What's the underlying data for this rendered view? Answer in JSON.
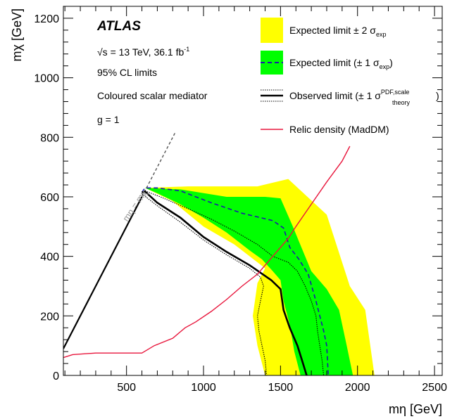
{
  "chart_data": {
    "type": "area",
    "experiment": "ATLAS",
    "energy_prefix": "√s = 13 TeV, 36.1 fb",
    "energy_sup": "-1",
    "cl_text": "95% CL limits",
    "model_text": "Coloured scalar mediator",
    "coupling_text": "g = 1",
    "diagonal_label": "mη = mχ",
    "xlabel": "mη [GeV]",
    "ylabel": "mχ [GeV]",
    "xlim": [
      90,
      2550
    ],
    "ylim": [
      0,
      1240
    ],
    "x_ticks": [
      500,
      1000,
      1500,
      2000,
      2500
    ],
    "y_ticks": [
      0,
      200,
      400,
      600,
      800,
      1000,
      1200
    ],
    "legend": {
      "exp2": {
        "prefix": "Expected limit ± 2 σ",
        "sub": "exp",
        "suffix": ""
      },
      "exp1": {
        "prefix": "Expected limit (± 1 σ",
        "sub": "exp",
        "suffix": ")"
      },
      "obs": {
        "prefix": "Observed limit (± 1 σ",
        "sup": "PDF,scale",
        "sub": "theory",
        "suffix": ")"
      },
      "relic": {
        "text": "Relic density (MadDM)"
      }
    },
    "colors": {
      "band2": "#ffff00",
      "band1": "#00ff00",
      "expected": "#1a1aaa",
      "observed": "#000000",
      "relic": "#e8163c",
      "diagonal": "#000000"
    },
    "band2_outer": [
      [
        620,
        630
      ],
      [
        900,
        635
      ],
      [
        1350,
        635
      ],
      [
        1550,
        660
      ],
      [
        1800,
        540
      ],
      [
        1950,
        300
      ],
      [
        2050,
        220
      ],
      [
        2110,
        0
      ]
    ],
    "band2_inner": [
      [
        620,
        630
      ],
      [
        700,
        610
      ],
      [
        800,
        585
      ],
      [
        1000,
        500
      ],
      [
        1200,
        440
      ],
      [
        1350,
        380
      ],
      [
        1400,
        360
      ],
      [
        1350,
        310
      ],
      [
        1320,
        200
      ],
      [
        1350,
        100
      ],
      [
        1400,
        0
      ]
    ],
    "band1_outer": [
      [
        620,
        630
      ],
      [
        850,
        625
      ],
      [
        1150,
        600
      ],
      [
        1400,
        600
      ],
      [
        1500,
        595
      ],
      [
        1580,
        500
      ],
      [
        1620,
        450
      ],
      [
        1700,
        350
      ],
      [
        1800,
        290
      ],
      [
        1880,
        220
      ],
      [
        1930,
        100
      ],
      [
        1970,
        0
      ]
    ],
    "band1_inner": [
      [
        620,
        630
      ],
      [
        700,
        612
      ],
      [
        850,
        575
      ],
      [
        1000,
        530
      ],
      [
        1150,
        480
      ],
      [
        1300,
        420
      ],
      [
        1380,
        390
      ],
      [
        1450,
        350
      ],
      [
        1500,
        320
      ],
      [
        1520,
        250
      ],
      [
        1560,
        170
      ],
      [
        1590,
        80
      ],
      [
        1630,
        0
      ]
    ],
    "expected": [
      [
        600,
        615
      ],
      [
        620,
        630
      ],
      [
        700,
        630
      ],
      [
        850,
        620
      ],
      [
        1050,
        580
      ],
      [
        1250,
        545
      ],
      [
        1450,
        520
      ],
      [
        1520,
        495
      ],
      [
        1560,
        430
      ],
      [
        1620,
        390
      ],
      [
        1680,
        340
      ],
      [
        1730,
        250
      ],
      [
        1780,
        150
      ],
      [
        1800,
        100
      ],
      [
        1810,
        0
      ]
    ],
    "observed": [
      [
        600,
        615
      ],
      [
        620,
        618
      ],
      [
        700,
        580
      ],
      [
        850,
        530
      ],
      [
        1000,
        465
      ],
      [
        1150,
        415
      ],
      [
        1300,
        370
      ],
      [
        1440,
        320
      ],
      [
        1500,
        290
      ],
      [
        1520,
        220
      ],
      [
        1560,
        160
      ],
      [
        1610,
        100
      ],
      [
        1640,
        50
      ],
      [
        1670,
        0
      ]
    ],
    "observed_plus": [
      [
        620,
        620
      ],
      [
        720,
        600
      ],
      [
        900,
        560
      ],
      [
        1050,
        525
      ],
      [
        1200,
        485
      ],
      [
        1350,
        440
      ],
      [
        1450,
        400
      ],
      [
        1550,
        380
      ],
      [
        1610,
        350
      ],
      [
        1660,
        300
      ],
      [
        1700,
        250
      ],
      [
        1730,
        200
      ],
      [
        1740,
        150
      ],
      [
        1755,
        100
      ],
      [
        1770,
        50
      ],
      [
        1780,
        0
      ]
    ],
    "observed_minus": [
      [
        600,
        610
      ],
      [
        700,
        570
      ],
      [
        850,
        515
      ],
      [
        1000,
        455
      ],
      [
        1150,
        405
      ],
      [
        1300,
        360
      ],
      [
        1370,
        330
      ],
      [
        1390,
        300
      ],
      [
        1370,
        250
      ],
      [
        1350,
        200
      ],
      [
        1360,
        150
      ],
      [
        1380,
        100
      ],
      [
        1400,
        50
      ],
      [
        1410,
        0
      ]
    ],
    "diagonal": [
      [
        90,
        90
      ],
      [
        600,
        600
      ]
    ],
    "diagonal_dashed": [
      [
        600,
        600
      ],
      [
        820,
        820
      ]
    ],
    "relic": [
      [
        90,
        60
      ],
      [
        150,
        70
      ],
      [
        300,
        75
      ],
      [
        560,
        75
      ],
      [
        600,
        75
      ],
      [
        680,
        100
      ],
      [
        800,
        125
      ],
      [
        880,
        160
      ],
      [
        950,
        180
      ],
      [
        1050,
        215
      ],
      [
        1150,
        255
      ],
      [
        1250,
        300
      ],
      [
        1350,
        340
      ],
      [
        1450,
        400
      ],
      [
        1550,
        460
      ],
      [
        1600,
        500
      ],
      [
        1680,
        560
      ],
      [
        1800,
        650
      ],
      [
        1900,
        720
      ],
      [
        1950,
        770
      ]
    ]
  }
}
